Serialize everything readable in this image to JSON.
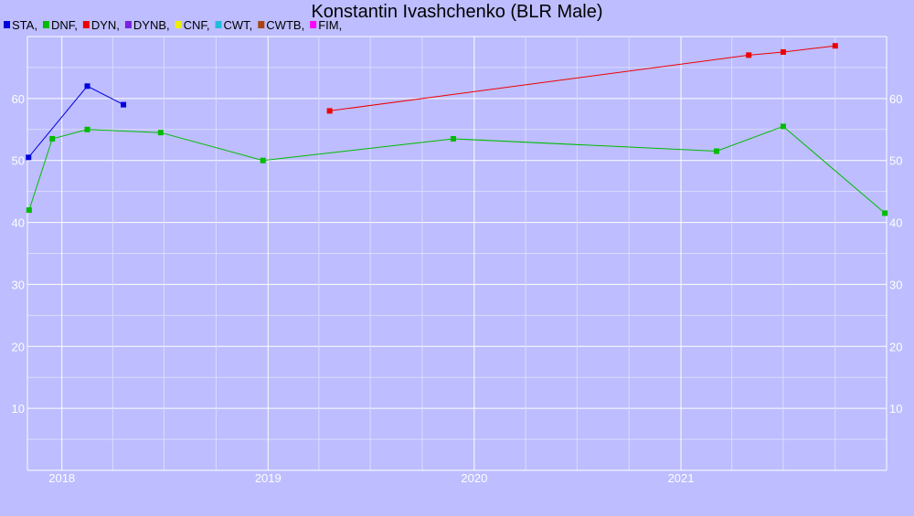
{
  "chart_data": {
    "type": "line",
    "title": "Konstantin Ivashchenko (BLR Male)",
    "xlabel": "",
    "ylabel": "",
    "x_is_date": true,
    "xlim": [
      "2017-11-01",
      "2021-12-31"
    ],
    "ylim": [
      0,
      70
    ],
    "grid": true,
    "legend_position": "top-left",
    "x_ticks": [
      "2018",
      "2019",
      "2020",
      "2021"
    ],
    "y_ticks": [
      10,
      20,
      30,
      40,
      50,
      60
    ],
    "legend": [
      {
        "label": "STA,",
        "color": "#0000dd"
      },
      {
        "label": "DNF,",
        "color": "#00bb00"
      },
      {
        "label": "DYN,",
        "color": "#ee0000"
      },
      {
        "label": "DYNB,",
        "color": "#7722dd"
      },
      {
        "label": "CNF,",
        "color": "#eeee00"
      },
      {
        "label": "CWT,",
        "color": "#22bbdd"
      },
      {
        "label": "CWTB,",
        "color": "#aa4411"
      },
      {
        "label": "FIM,",
        "color": "#ff00ff"
      }
    ],
    "series": [
      {
        "name": "STA",
        "color": "#0000dd",
        "points": [
          {
            "x": "2017-11-03",
            "y": 50.5
          },
          {
            "x": "2018-02-15",
            "y": 62
          },
          {
            "x": "2018-04-20",
            "y": 59
          }
        ]
      },
      {
        "name": "DNF",
        "color": "#00bb00",
        "points": [
          {
            "x": "2017-11-04",
            "y": 42
          },
          {
            "x": "2017-12-15",
            "y": 53.5
          },
          {
            "x": "2018-02-15",
            "y": 55
          },
          {
            "x": "2018-06-25",
            "y": 54.5
          },
          {
            "x": "2018-12-23",
            "y": 50
          },
          {
            "x": "2019-11-25",
            "y": 53.5
          },
          {
            "x": "2021-03-05",
            "y": 51.5
          },
          {
            "x": "2021-07-01",
            "y": 55.5
          },
          {
            "x": "2021-12-28",
            "y": 41.5
          }
        ]
      },
      {
        "name": "DYN",
        "color": "#ee0000",
        "points": [
          {
            "x": "2019-04-20",
            "y": 58
          },
          {
            "x": "2021-05-01",
            "y": 67
          },
          {
            "x": "2021-07-01",
            "y": 67.5
          },
          {
            "x": "2021-10-01",
            "y": 68.5
          }
        ]
      }
    ]
  }
}
